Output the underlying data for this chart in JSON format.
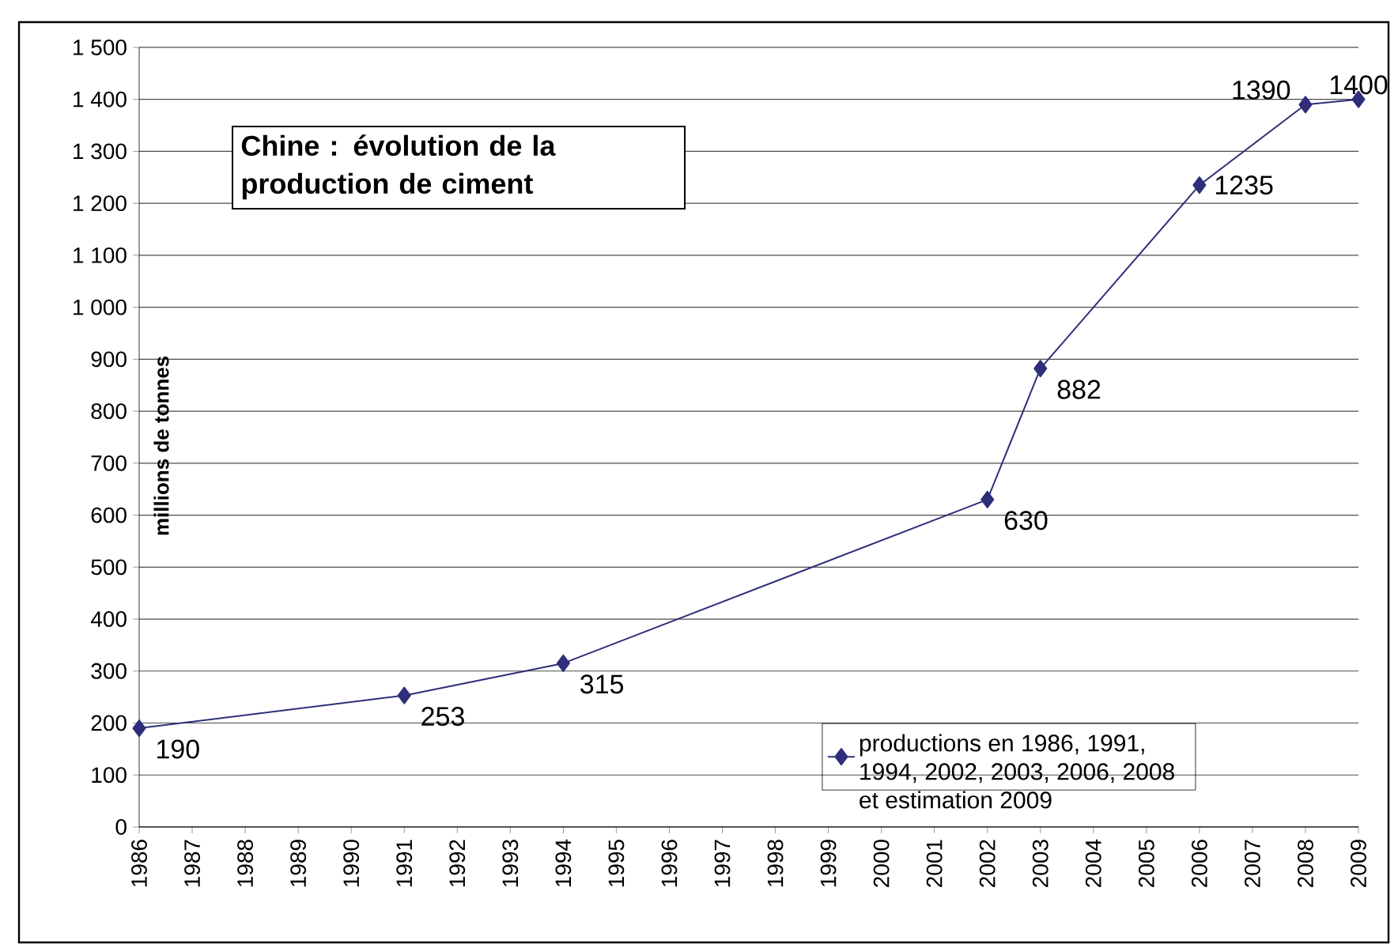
{
  "chart_data": {
    "type": "line",
    "title": "Chine : évolution de la production de ciment",
    "ylabel": "millions de tonnes",
    "xlim": [
      1986,
      2009
    ],
    "xticks": [
      1986,
      1987,
      1988,
      1989,
      1990,
      1991,
      1992,
      1993,
      1994,
      1995,
      1996,
      1997,
      1998,
      1999,
      2000,
      2001,
      2002,
      2003,
      2004,
      2005,
      2006,
      2007,
      2008,
      2009
    ],
    "ylim": [
      0,
      1500
    ],
    "yticks": [
      0,
      100,
      200,
      300,
      400,
      500,
      600,
      700,
      800,
      900,
      {
        "value": 1000,
        "label": "1 000"
      },
      {
        "value": 1100,
        "label": "1 100"
      },
      {
        "value": 1200,
        "label": "1 200"
      },
      {
        "value": 1300,
        "label": "1 300"
      },
      {
        "value": 1400,
        "label": "1 400"
      },
      {
        "value": 1500,
        "label": "1 500"
      }
    ],
    "x": [
      1986,
      1991,
      1994,
      2002,
      2003,
      2006,
      2008,
      2009
    ],
    "series": [
      {
        "name": "productions en 1986, 1991, 1994, 2002, 2003, 2006, 2008 et estimation 2009",
        "color": "#2e2e7a",
        "values": [
          190,
          253,
          315,
          630,
          882,
          1235,
          1390,
          1400
        ]
      }
    ],
    "data_labels": true,
    "grid": "y",
    "legend": "bottom right",
    "marker": "diamond",
    "line_style": "solid"
  }
}
